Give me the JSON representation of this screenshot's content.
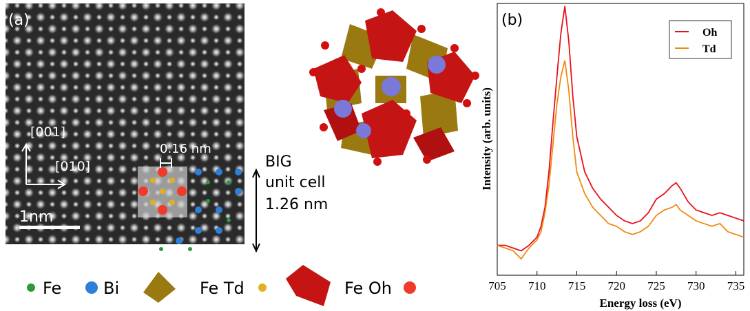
{
  "panel_a": {
    "label": "(a)",
    "directions": [
      "[001]",
      "[010]"
    ],
    "spacing": "0.16 nm",
    "scale_bar": "1nm",
    "cell_label": [
      "BIG",
      "unit cell",
      "1.26 nm"
    ],
    "legend": [
      "Fe",
      "Bi",
      "Fe Td",
      "Fe Oh"
    ]
  },
  "chart_data": {
    "type": "line",
    "panel_label": "(b)",
    "xlabel": "Energy loss (eV)",
    "ylabel": "Intensity (arb. units)",
    "x": [
      705,
      706,
      707,
      708,
      709,
      710,
      710.5,
      711,
      711.5,
      712,
      712.5,
      713,
      713.5,
      714,
      714.5,
      715,
      716,
      717,
      718,
      719,
      720,
      721,
      722,
      723,
      724,
      725,
      726,
      727,
      727.5,
      728,
      729,
      730,
      731,
      732,
      733,
      734,
      735,
      736
    ],
    "series": [
      {
        "name": "Oh",
        "color": "#e8101a",
        "values": [
          0.11,
          0.11,
          0.1,
          0.09,
          0.11,
          0.14,
          0.18,
          0.25,
          0.38,
          0.56,
          0.73,
          0.89,
          0.99,
          0.86,
          0.66,
          0.51,
          0.38,
          0.32,
          0.28,
          0.25,
          0.22,
          0.2,
          0.19,
          0.2,
          0.23,
          0.28,
          0.3,
          0.33,
          0.34,
          0.32,
          0.27,
          0.24,
          0.23,
          0.22,
          0.23,
          0.22,
          0.21,
          0.2
        ]
      },
      {
        "name": "Td",
        "color": "#f08a10",
        "values": [
          0.11,
          0.1,
          0.09,
          0.06,
          0.1,
          0.13,
          0.16,
          0.23,
          0.33,
          0.48,
          0.63,
          0.73,
          0.79,
          0.68,
          0.51,
          0.38,
          0.3,
          0.25,
          0.22,
          0.19,
          0.18,
          0.16,
          0.15,
          0.16,
          0.18,
          0.22,
          0.24,
          0.25,
          0.26,
          0.24,
          0.22,
          0.2,
          0.19,
          0.18,
          0.19,
          0.16,
          0.15,
          0.14
        ]
      }
    ],
    "xlim": [
      705,
      736
    ],
    "xticks": [
      705,
      710,
      715,
      720,
      725,
      730,
      735
    ],
    "ylim": [
      0,
      1
    ],
    "legend": "upper right"
  }
}
